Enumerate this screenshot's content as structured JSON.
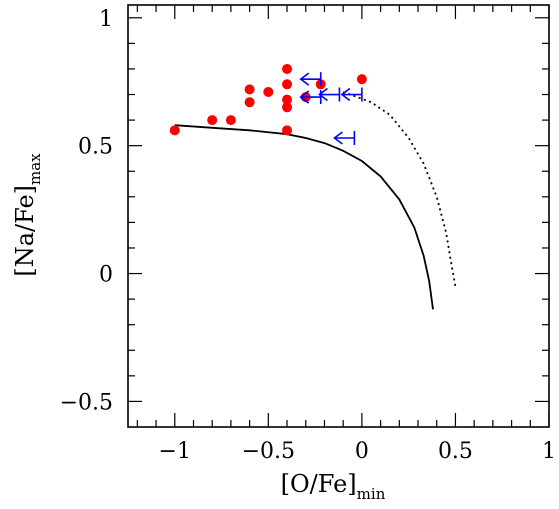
{
  "chart_data": {
    "type": "scatter",
    "xlabel": "[O/Fe]",
    "xlabel_sub": "min",
    "ylabel": "[Na/Fe]",
    "ylabel_sub": "max",
    "xlim": [
      -1.25,
      1.0
    ],
    "ylim": [
      -0.6,
      1.05
    ],
    "xticks": [
      {
        "value": -1,
        "label": "−1"
      },
      {
        "value": -0.5,
        "label": "−0.5"
      },
      {
        "value": 0,
        "label": "0"
      },
      {
        "value": 0.5,
        "label": "0.5"
      },
      {
        "value": 1,
        "label": "1"
      }
    ],
    "yticks": [
      {
        "value": -0.5,
        "label": "−0.5"
      },
      {
        "value": 0,
        "label": "0"
      },
      {
        "value": 0.5,
        "label": "0.5"
      },
      {
        "value": 1,
        "label": "1"
      }
    ],
    "x_minor_step": 0.1,
    "y_minor_step": 0.1,
    "grid": false,
    "series": [
      {
        "type": "scatter",
        "marker": "filled-circle",
        "color": "#ff0000",
        "points": [
          {
            "x": -1.0,
            "y": 0.56
          },
          {
            "x": -0.8,
            "y": 0.6
          },
          {
            "x": -0.7,
            "y": 0.6
          },
          {
            "x": -0.6,
            "y": 0.72
          },
          {
            "x": -0.6,
            "y": 0.67
          },
          {
            "x": -0.5,
            "y": 0.71
          },
          {
            "x": -0.4,
            "y": 0.8
          },
          {
            "x": -0.4,
            "y": 0.74
          },
          {
            "x": -0.4,
            "y": 0.68
          },
          {
            "x": -0.4,
            "y": 0.65
          },
          {
            "x": -0.4,
            "y": 0.56
          },
          {
            "x": -0.3,
            "y": 0.69
          },
          {
            "x": -0.22,
            "y": 0.74
          },
          {
            "x": 0.0,
            "y": 0.76
          }
        ]
      },
      {
        "type": "scatter",
        "marker": "upper-limit-left-arrow",
        "color": "#0000ff",
        "points": [
          {
            "x": -0.22,
            "y": 0.76
          },
          {
            "x": -0.22,
            "y": 0.69
          },
          {
            "x": -0.12,
            "y": 0.7
          },
          {
            "x": 0.0,
            "y": 0.7
          },
          {
            "x": -0.04,
            "y": 0.53
          }
        ]
      },
      {
        "type": "line",
        "style": "solid",
        "color": "#000000",
        "points": [
          {
            "x": -1.0,
            "y": 0.58
          },
          {
            "x": -0.8,
            "y": 0.57
          },
          {
            "x": -0.6,
            "y": 0.56
          },
          {
            "x": -0.4,
            "y": 0.545
          },
          {
            "x": -0.3,
            "y": 0.53
          },
          {
            "x": -0.2,
            "y": 0.51
          },
          {
            "x": -0.1,
            "y": 0.48
          },
          {
            "x": 0.0,
            "y": 0.44
          },
          {
            "x": 0.1,
            "y": 0.38
          },
          {
            "x": 0.2,
            "y": 0.29
          },
          {
            "x": 0.28,
            "y": 0.18
          },
          {
            "x": 0.33,
            "y": 0.07
          },
          {
            "x": 0.36,
            "y": -0.03
          },
          {
            "x": 0.38,
            "y": -0.14
          }
        ]
      },
      {
        "type": "line",
        "style": "dotted",
        "color": "#000000",
        "points": [
          {
            "x": -0.1,
            "y": 0.71
          },
          {
            "x": 0.05,
            "y": 0.67
          },
          {
            "x": 0.15,
            "y": 0.62
          },
          {
            "x": 0.25,
            "y": 0.53
          },
          {
            "x": 0.33,
            "y": 0.43
          },
          {
            "x": 0.4,
            "y": 0.3
          },
          {
            "x": 0.45,
            "y": 0.16
          },
          {
            "x": 0.48,
            "y": 0.03
          },
          {
            "x": 0.5,
            "y": -0.05
          }
        ]
      }
    ]
  }
}
